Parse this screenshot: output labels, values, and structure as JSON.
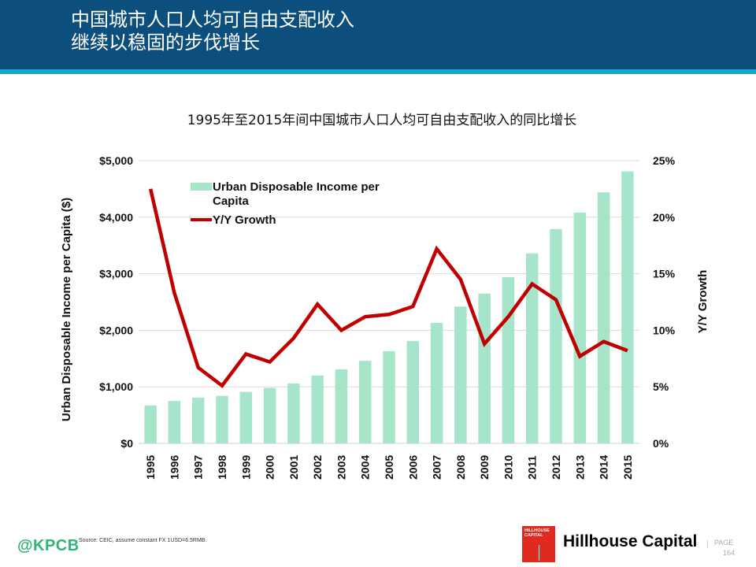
{
  "header": {
    "title_line1": "中国城市人口人均可自由支配收入",
    "title_line2": "继续以稳固的步伐增长"
  },
  "chart_data": {
    "type": "bar+line",
    "title": "1995年至2015年间中国城市人口人均可自由支配收入的同比增长",
    "categories": [
      "1995",
      "1996",
      "1997",
      "1998",
      "1999",
      "2000",
      "2001",
      "2002",
      "2003",
      "2004",
      "2005",
      "2006",
      "2007",
      "2008",
      "2009",
      "2010",
      "2011",
      "2012",
      "2013",
      "2014",
      "2015"
    ],
    "series": [
      {
        "name": "Urban Disposable Income per Capita",
        "type": "bar",
        "axis": "left",
        "color": "#a6e5ca",
        "values": [
          670,
          750,
          810,
          840,
          910,
          980,
          1060,
          1200,
          1310,
          1460,
          1630,
          1810,
          2130,
          2420,
          2650,
          2940,
          3360,
          3790,
          4080,
          4440,
          4810
        ]
      },
      {
        "name": "Y/Y Growth",
        "type": "line",
        "axis": "right",
        "color": "#c00000",
        "values": [
          22.5,
          13.3,
          6.7,
          5.1,
          7.9,
          7.2,
          9.3,
          12.3,
          10.0,
          11.2,
          11.4,
          12.1,
          17.2,
          14.5,
          8.8,
          11.2,
          14.1,
          12.7,
          7.7,
          9.0,
          8.2
        ]
      }
    ],
    "ylabel": "Urban Disposable Income per Capita ($)",
    "y2label": "Y/Y Growth",
    "ylim": [
      0,
      5000
    ],
    "y2lim": [
      0,
      25
    ],
    "yticks": [
      "$0",
      "$1,000",
      "$2,000",
      "$3,000",
      "$4,000",
      "$5,000"
    ],
    "y2ticks": [
      "0%",
      "5%",
      "10%",
      "15%",
      "20%",
      "25%"
    ],
    "grid": true,
    "legend": {
      "position": "top-left",
      "bar_label_line1": "Urban Disposable Income per",
      "bar_label_line2": "Capita",
      "line_label": "Y/Y Growth"
    }
  },
  "footer": {
    "kpcb": "@KPCB",
    "source": "Source: CEIC, assume constant FX 1USD=6.5RMB.",
    "logo_text_line1": "HILLHOUSE",
    "logo_text_line2": "CAPITAL",
    "company": "Hillhouse Capital",
    "separator": "|",
    "page_label": "PAGE",
    "page_number": "164"
  }
}
